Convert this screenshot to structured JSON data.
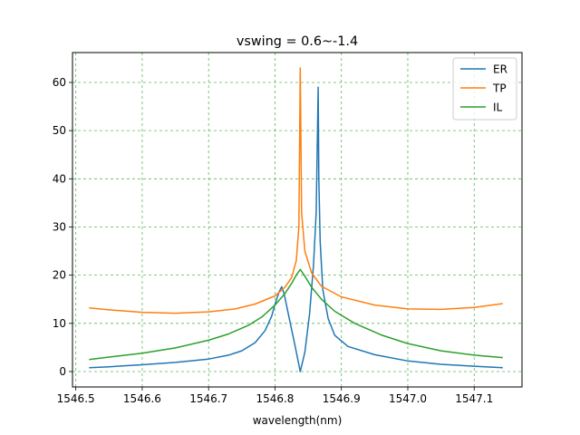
{
  "chart_data": {
    "type": "line",
    "title": "vswing = 0.6~-1.4",
    "xlabel": "wavelength(nm)",
    "ylabel": "",
    "xlim": [
      1546.495,
      1547.172
    ],
    "ylim": [
      -3.2,
      66.2
    ],
    "xticks": [
      1546.5,
      1546.6,
      1546.7,
      1546.8,
      1546.9,
      1547.0,
      1547.1
    ],
    "xtick_labels": [
      "1546.5",
      "1546.6",
      "1546.7",
      "1546.8",
      "1546.9",
      "1547.0",
      "1547.1"
    ],
    "yticks": [
      0,
      10,
      20,
      30,
      40,
      50,
      60
    ],
    "ytick_labels": [
      "0",
      "10",
      "20",
      "30",
      "40",
      "50",
      "60"
    ],
    "grid": true,
    "grid_color": "#5cb85c",
    "legend_position": "top-right",
    "series": [
      {
        "name": "ER",
        "color": "#1f77b4",
        "points": [
          [
            1546.52,
            0.8
          ],
          [
            1546.55,
            1.0
          ],
          [
            1546.6,
            1.4
          ],
          [
            1546.65,
            1.9
          ],
          [
            1546.7,
            2.6
          ],
          [
            1546.73,
            3.4
          ],
          [
            1546.75,
            4.3
          ],
          [
            1546.77,
            6.0
          ],
          [
            1546.785,
            8.5
          ],
          [
            1546.795,
            11.5
          ],
          [
            1546.8,
            14.0
          ],
          [
            1546.806,
            16.5
          ],
          [
            1546.81,
            17.6
          ],
          [
            1546.814,
            16.0
          ],
          [
            1546.82,
            12.0
          ],
          [
            1546.83,
            5.5
          ],
          [
            1546.838,
            0.0
          ],
          [
            1546.845,
            4.0
          ],
          [
            1546.852,
            12.0
          ],
          [
            1546.858,
            22.0
          ],
          [
            1546.862,
            33.0
          ],
          [
            1546.865,
            59.0
          ],
          [
            1546.866,
            40.0
          ],
          [
            1546.868,
            27.0
          ],
          [
            1546.872,
            17.0
          ],
          [
            1546.88,
            11.0
          ],
          [
            1546.89,
            7.5
          ],
          [
            1546.91,
            5.2
          ],
          [
            1546.95,
            3.5
          ],
          [
            1547.0,
            2.2
          ],
          [
            1547.05,
            1.5
          ],
          [
            1547.1,
            1.1
          ],
          [
            1547.143,
            0.8
          ]
        ]
      },
      {
        "name": "TP",
        "color": "#ff7f0e",
        "points": [
          [
            1546.52,
            13.2
          ],
          [
            1546.55,
            12.8
          ],
          [
            1546.6,
            12.3
          ],
          [
            1546.65,
            12.1
          ],
          [
            1546.7,
            12.4
          ],
          [
            1546.74,
            13.0
          ],
          [
            1546.77,
            14.0
          ],
          [
            1546.8,
            15.7
          ],
          [
            1546.815,
            17.5
          ],
          [
            1546.825,
            19.5
          ],
          [
            1546.832,
            23.0
          ],
          [
            1546.836,
            30.0
          ],
          [
            1546.838,
            63.0
          ],
          [
            1546.84,
            33.0
          ],
          [
            1546.845,
            25.0
          ],
          [
            1546.855,
            20.5
          ],
          [
            1546.87,
            17.7
          ],
          [
            1546.9,
            15.5
          ],
          [
            1546.95,
            13.8
          ],
          [
            1547.0,
            13.0
          ],
          [
            1547.05,
            12.9
          ],
          [
            1547.1,
            13.3
          ],
          [
            1547.143,
            14.1
          ]
        ]
      },
      {
        "name": "IL",
        "color": "#2ca02c",
        "points": [
          [
            1546.52,
            2.5
          ],
          [
            1546.55,
            3.0
          ],
          [
            1546.6,
            3.8
          ],
          [
            1546.65,
            4.9
          ],
          [
            1546.7,
            6.5
          ],
          [
            1546.73,
            7.8
          ],
          [
            1546.76,
            9.6
          ],
          [
            1546.78,
            11.3
          ],
          [
            1546.8,
            13.8
          ],
          [
            1546.815,
            16.2
          ],
          [
            1546.825,
            18.3
          ],
          [
            1546.832,
            20.0
          ],
          [
            1546.838,
            21.2
          ],
          [
            1546.845,
            19.8
          ],
          [
            1546.855,
            17.5
          ],
          [
            1546.87,
            15.0
          ],
          [
            1546.89,
            12.5
          ],
          [
            1546.92,
            10.0
          ],
          [
            1546.96,
            7.6
          ],
          [
            1547.0,
            5.8
          ],
          [
            1547.05,
            4.3
          ],
          [
            1547.1,
            3.4
          ],
          [
            1547.143,
            2.9
          ]
        ]
      }
    ]
  }
}
